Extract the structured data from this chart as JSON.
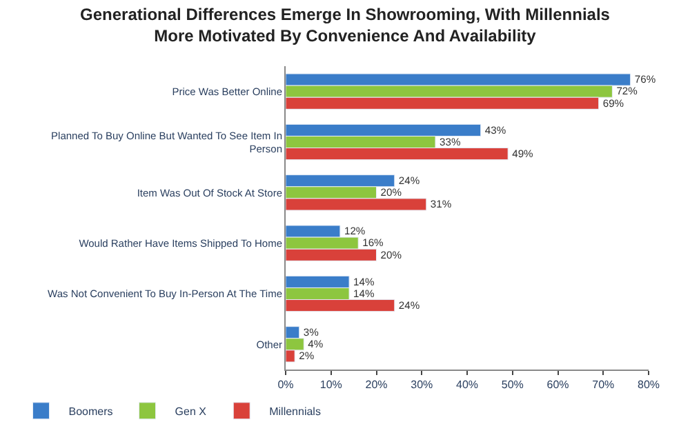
{
  "chart_data": {
    "type": "bar",
    "orientation": "horizontal",
    "title": "Generational Differences Emerge In Showrooming, With Millennials More Motivated By Convenience And Availability",
    "categories": [
      "Price Was Better Online",
      "Planned To Buy Online But Wanted To See Item In Person",
      "Item Was Out Of Stock At Store",
      "Would Rather Have Items Shipped To Home",
      "Was Not Convenient To Buy In-Person At The Time",
      "Other"
    ],
    "series": [
      {
        "name": "Boomers",
        "color": "#3a7dc9",
        "values": [
          76,
          43,
          24,
          12,
          14,
          3
        ],
        "value_labels": [
          "76%",
          "43%",
          "24%",
          "12%",
          "14%",
          "3%"
        ]
      },
      {
        "name": "Gen X",
        "color": "#8dc63f",
        "values": [
          72,
          33,
          20,
          16,
          14,
          4
        ],
        "value_labels": [
          "72%",
          "33%",
          "20%",
          "16%",
          "14%",
          "4%"
        ]
      },
      {
        "name": "Millennials",
        "color": "#d9413a",
        "values": [
          69,
          49,
          31,
          20,
          24,
          2
        ],
        "value_labels": [
          "69%",
          "49%",
          "31%",
          "20%",
          "24%",
          "2%"
        ]
      }
    ],
    "xlim": [
      0,
      80
    ],
    "xticks": [
      {
        "value": 0,
        "label": "0%"
      },
      {
        "value": 10,
        "label": "10%"
      },
      {
        "value": 20,
        "label": "20%"
      },
      {
        "value": 30,
        "label": "30%"
      },
      {
        "value": 40,
        "label": "40%"
      },
      {
        "value": 50,
        "label": "50%"
      },
      {
        "value": 60,
        "label": "60%"
      },
      {
        "value": 70,
        "label": "70%"
      },
      {
        "value": 80,
        "label": "80%"
      }
    ],
    "legend": "bottom left"
  }
}
